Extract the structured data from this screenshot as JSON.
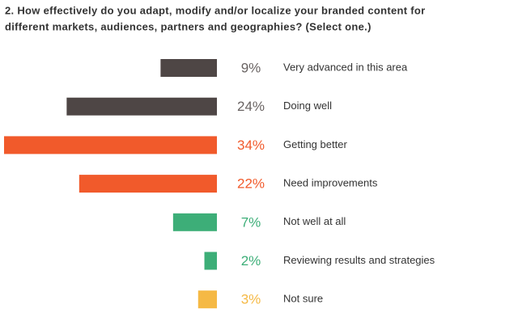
{
  "chart_data": {
    "type": "bar",
    "orientation": "horizontal-left",
    "title": [
      "2. How effectively do you adapt, modify and/or localize your branded content for",
      "different markets, audiences, partners and geographies? (Select one.)"
    ],
    "categories": [
      "Very advanced in this area",
      "Doing well",
      "Getting better",
      "Need improvements",
      "Not well at all",
      "Reviewing results and strategies",
      "Not sure"
    ],
    "values": [
      9,
      24,
      34,
      22,
      7,
      2,
      3
    ],
    "value_labels": [
      "9%",
      "24%",
      "34%",
      "22%",
      "7%",
      "2%",
      "3%"
    ],
    "colors": [
      "#4e4645",
      "#4e4645",
      "#f15a2b",
      "#f15a2b",
      "#3dae78",
      "#3dae78",
      "#f5b945"
    ]
  }
}
